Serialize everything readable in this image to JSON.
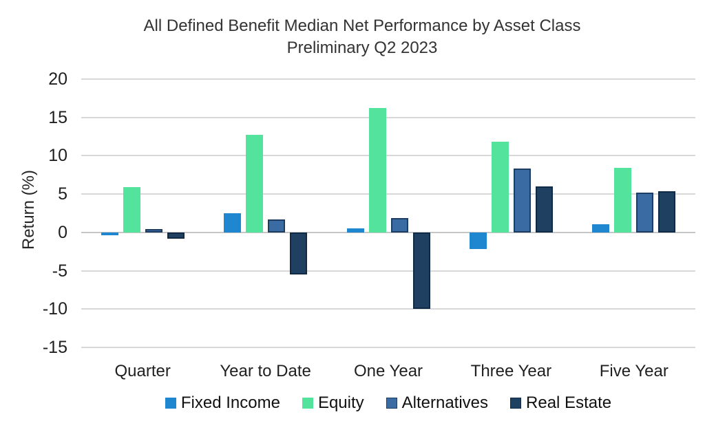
{
  "chart_data": {
    "type": "bar",
    "title": "All Defined Benefit Median Net Performance by Asset Class",
    "subtitle": "Preliminary Q2 2023",
    "ylabel": "Return (%)",
    "xlabel": "",
    "categories": [
      "Quarter",
      "Year to Date",
      "One Year",
      "Three Year",
      "Five Year"
    ],
    "series": [
      {
        "name": "Fixed Income",
        "color": "#1e87cf",
        "border": "#1e87cf",
        "values": [
          -0.4,
          2.5,
          0.5,
          -2.2,
          1.1
        ]
      },
      {
        "name": "Equity",
        "color": "#53e39c",
        "border": "#53e39c",
        "values": [
          5.9,
          12.7,
          16.2,
          11.8,
          8.4
        ]
      },
      {
        "name": "Alternatives",
        "color": "#3a6ba3",
        "border": "#1d3c61",
        "values": [
          0.4,
          1.7,
          1.9,
          8.3,
          5.2
        ]
      },
      {
        "name": "Real Estate",
        "color": "#1f4060",
        "border": "#0e2a45",
        "values": [
          -0.8,
          -5.5,
          -10.0,
          6.0,
          5.4
        ]
      }
    ],
    "ylim": [
      -15,
      20
    ],
    "yticks": [
      20,
      15,
      10,
      5,
      0,
      -5,
      -10,
      -15
    ],
    "grid": true,
    "legend_position": "bottom",
    "axis_text_color": "#1f1f1f",
    "gridline_color": "#d8d8d8"
  }
}
